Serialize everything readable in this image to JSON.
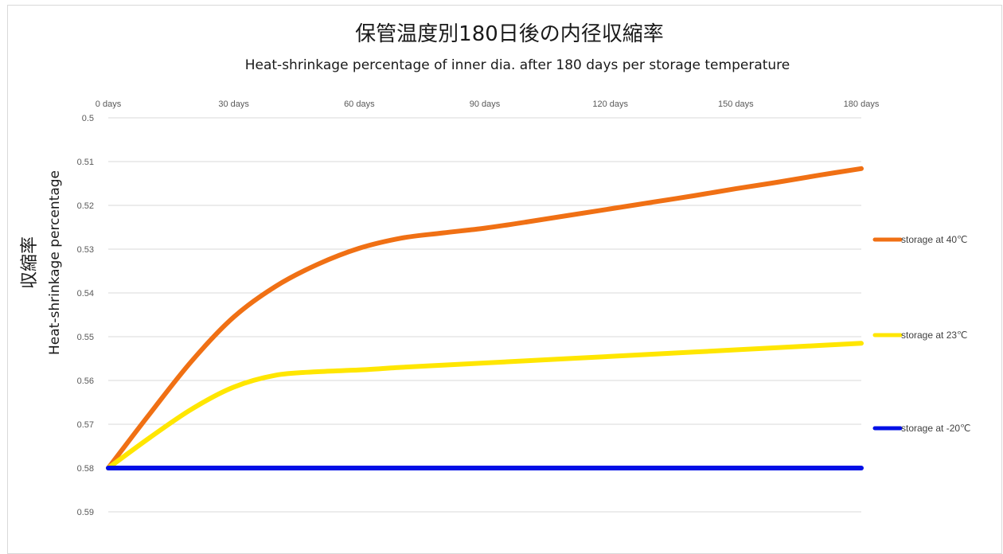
{
  "chart_data": {
    "type": "line",
    "title": "保管温度別180日後の内径収縮率",
    "subtitle": "Heat-shrinkage percentage of inner dia. after 180 days per storage temperature",
    "ylabel_jp": "収縮率",
    "ylabel_en": "Heat-shrinkage percentage",
    "xlabel": "",
    "x_ticks": [
      0,
      30,
      60,
      90,
      120,
      150,
      180
    ],
    "x_tick_labels": [
      "0 days",
      "30 days",
      "60 days",
      "90 days",
      "120 days",
      "150 days",
      "180 days"
    ],
    "xlim": [
      0,
      180
    ],
    "y_ticks": [
      0.5,
      0.51,
      0.52,
      0.53,
      0.54,
      0.55,
      0.56,
      0.57,
      0.58,
      0.59
    ],
    "y_tick_labels": [
      "0.5",
      "0.51",
      "0.52",
      "0.53",
      "0.54",
      "0.55",
      "0.56",
      "0.57",
      "0.58",
      "0.59"
    ],
    "ylim": [
      0.5,
      0.59
    ],
    "y_inverted": true,
    "x_axis_position": "top",
    "grid": true,
    "legend_position": "right",
    "series": [
      {
        "name": "storage at 40℃",
        "color": "#f07014",
        "x": [
          0,
          10,
          20,
          30,
          40,
          50,
          60,
          70,
          80,
          90,
          100,
          110,
          120,
          130,
          140,
          150,
          160,
          170,
          180
        ],
        "y": [
          0.58,
          0.5675,
          0.5555,
          0.5455,
          0.5385,
          0.5335,
          0.5298,
          0.5275,
          0.5263,
          0.5252,
          0.5238,
          0.5223,
          0.5208,
          0.5193,
          0.5178,
          0.5162,
          0.5147,
          0.5131,
          0.5116
        ]
      },
      {
        "name": "storage at 23℃",
        "color": "#ffe600",
        "x": [
          0,
          10,
          20,
          30,
          40,
          50,
          60,
          70,
          80,
          90,
          100,
          110,
          120,
          130,
          140,
          150,
          160,
          170,
          180
        ],
        "y": [
          0.58,
          0.573,
          0.5665,
          0.5615,
          0.5588,
          0.558,
          0.5576,
          0.557,
          0.5565,
          0.556,
          0.5555,
          0.555,
          0.5545,
          0.554,
          0.5535,
          0.553,
          0.5525,
          0.552,
          0.5515
        ]
      },
      {
        "name": "storage at -20℃",
        "color": "#0010e6",
        "x": [
          0,
          180
        ],
        "y": [
          0.58,
          0.58
        ]
      }
    ]
  }
}
